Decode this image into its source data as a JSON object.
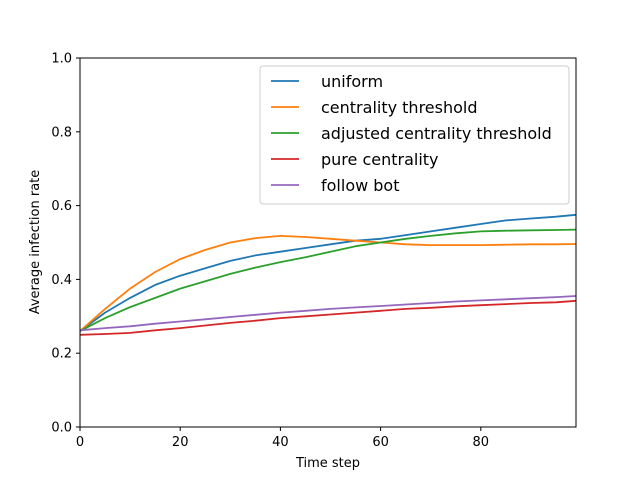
{
  "chart_data": {
    "type": "line",
    "xlabel": "Time step",
    "ylabel": "Average infection rate",
    "xlim": [
      0,
      99
    ],
    "ylim": [
      0.0,
      1.0
    ],
    "xticks": [
      0,
      20,
      40,
      60,
      80
    ],
    "xtick_labels": [
      "0",
      "20",
      "40",
      "60",
      "80"
    ],
    "yticks": [
      0.0,
      0.2,
      0.4,
      0.6,
      0.8,
      1.0
    ],
    "ytick_labels": [
      "0.0",
      "0.2",
      "0.4",
      "0.6",
      "0.8",
      "1.0"
    ],
    "grid": false,
    "legend_position": "top-right",
    "x": [
      0,
      5,
      10,
      15,
      20,
      25,
      30,
      35,
      40,
      45,
      50,
      55,
      60,
      65,
      70,
      75,
      80,
      85,
      90,
      95,
      99
    ],
    "series": [
      {
        "name": "uniform",
        "color": "#1f77b4",
        "values": [
          0.26,
          0.31,
          0.35,
          0.385,
          0.41,
          0.43,
          0.45,
          0.465,
          0.475,
          0.485,
          0.495,
          0.505,
          0.51,
          0.52,
          0.53,
          0.54,
          0.55,
          0.56,
          0.565,
          0.57,
          0.575
        ]
      },
      {
        "name": "centrality threshold",
        "color": "#ff7f0e",
        "values": [
          0.26,
          0.32,
          0.375,
          0.42,
          0.455,
          0.48,
          0.5,
          0.512,
          0.518,
          0.515,
          0.51,
          0.505,
          0.5,
          0.495,
          0.493,
          0.493,
          0.493,
          0.494,
          0.495,
          0.495,
          0.496
        ]
      },
      {
        "name": "adjusted centrality threshold",
        "color": "#2ca02c",
        "values": [
          0.26,
          0.295,
          0.325,
          0.35,
          0.375,
          0.395,
          0.415,
          0.432,
          0.447,
          0.46,
          0.475,
          0.49,
          0.5,
          0.51,
          0.518,
          0.525,
          0.53,
          0.532,
          0.533,
          0.534,
          0.535
        ]
      },
      {
        "name": "pure centrality",
        "color": "#d62728",
        "values": [
          0.25,
          0.252,
          0.255,
          0.262,
          0.268,
          0.275,
          0.282,
          0.288,
          0.295,
          0.3,
          0.305,
          0.31,
          0.315,
          0.32,
          0.323,
          0.327,
          0.33,
          0.333,
          0.336,
          0.338,
          0.342
        ]
      },
      {
        "name": "follow bot",
        "color": "#9467bd",
        "values": [
          0.262,
          0.268,
          0.273,
          0.28,
          0.286,
          0.292,
          0.298,
          0.304,
          0.31,
          0.315,
          0.32,
          0.324,
          0.328,
          0.332,
          0.336,
          0.34,
          0.343,
          0.346,
          0.349,
          0.352,
          0.355
        ]
      }
    ]
  }
}
